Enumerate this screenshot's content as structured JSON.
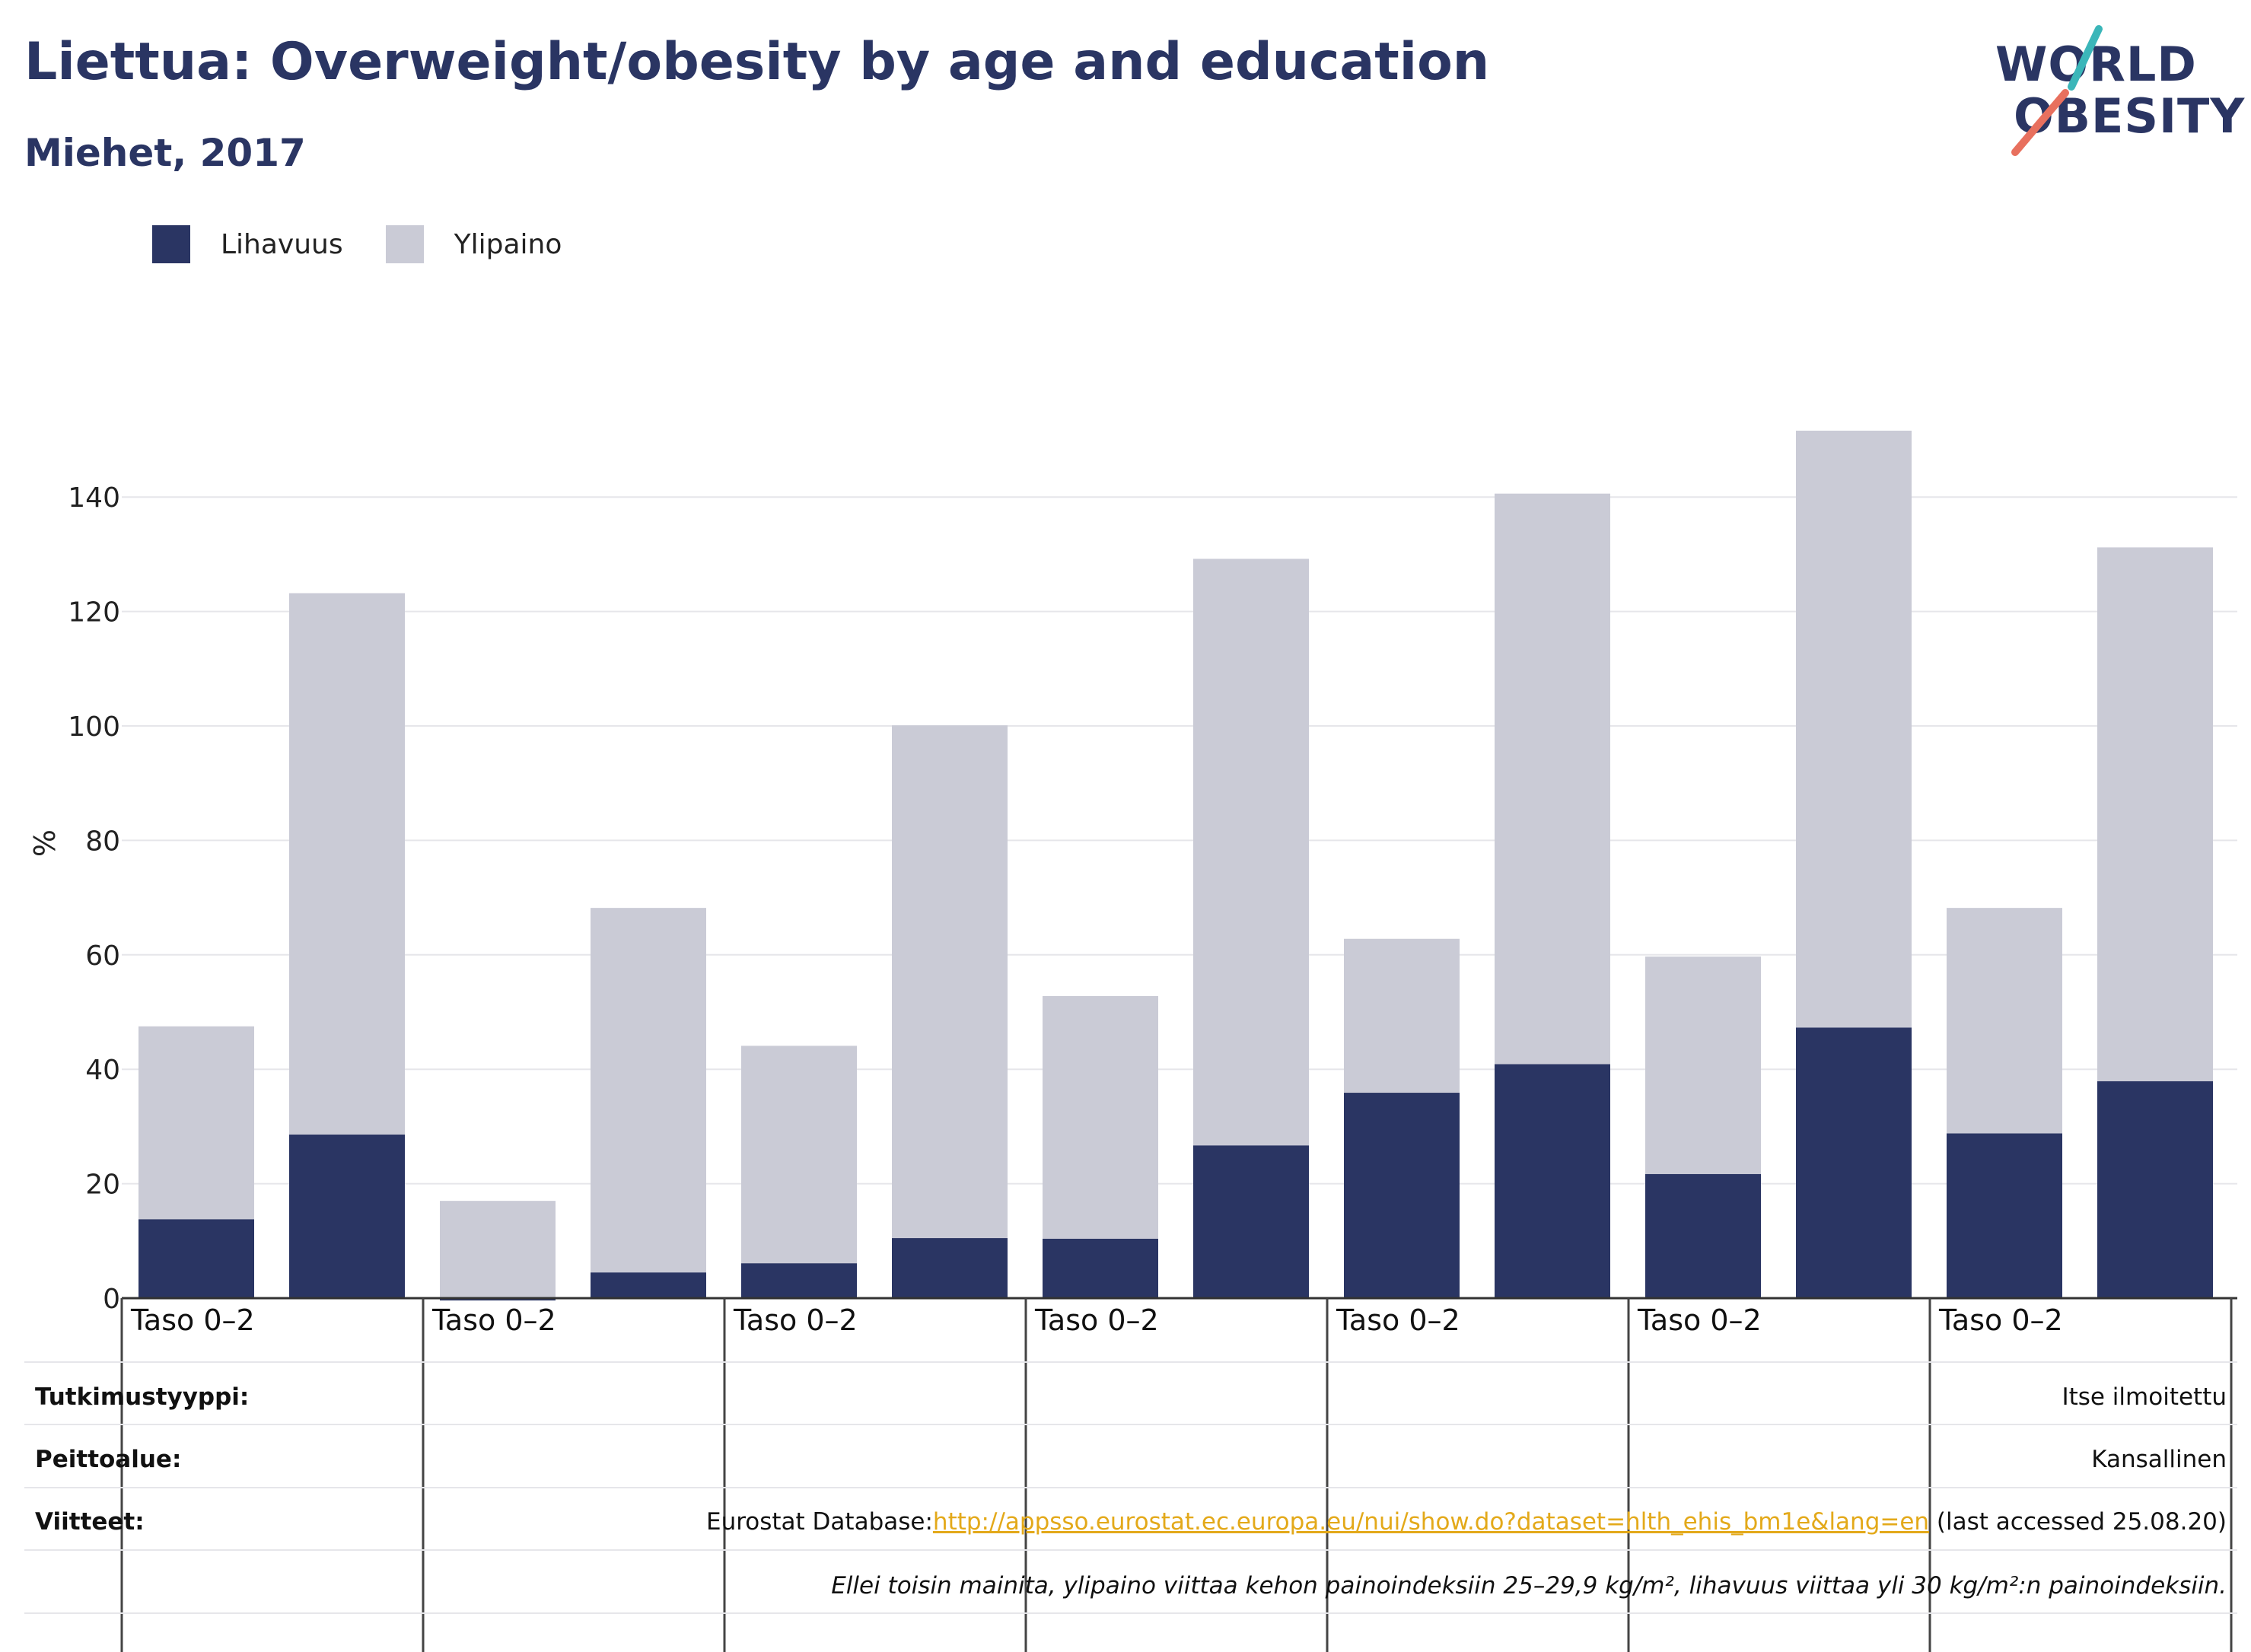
{
  "header": {
    "title": "Liettua: Overweight/obesity by age and education",
    "subtitle": "Miehet, 2017"
  },
  "logo": {
    "line1": "WORLD",
    "line2": "OBESITY"
  },
  "legend": {
    "items": [
      {
        "label": "Lihavuus",
        "color": "#2a3563"
      },
      {
        "label": "Ylipaino",
        "color": "#cacbd6"
      }
    ]
  },
  "chart_data": {
    "type": "bar",
    "stacked": true,
    "ylabel": "%",
    "ylim": [
      0,
      150
    ],
    "yticks": [
      0,
      20,
      40,
      60,
      80,
      100,
      120,
      140
    ],
    "grid": true,
    "legend_position": "top-left",
    "group_labels": [
      "Taso 0–2",
      "Taso 0–2",
      "Taso 0–2",
      "Taso 0–2",
      "Taso 0–2",
      "Taso 0–2",
      "Taso 0–2"
    ],
    "series": [
      {
        "name": "Lihavuus",
        "color": "#2a3563",
        "values": [
          13.8,
          28.6,
          -0.3,
          4.5,
          6.1,
          10.5,
          10.4,
          26.7,
          35.9,
          40.9,
          21.7,
          47.3,
          28.8,
          37.9
        ]
      },
      {
        "name": "Ylipaino",
        "color": "#cacbd6",
        "values": [
          33.7,
          94.6,
          17.0,
          63.7,
          38.0,
          89.6,
          42.4,
          102.5,
          26.9,
          99.7,
          38.0,
          104.3,
          39.4,
          93.3
        ]
      }
    ]
  },
  "footer": {
    "study_type_label": "Tutkimustyyppi:",
    "study_type_value": "Itse ilmoitettu",
    "coverage_label": "Peittoalue:",
    "coverage_value": "Kansallinen",
    "references_label": "Viitteet:",
    "references_prefix": "Eurostat Database:",
    "references_link": "http://appsso.eurostat.ec.europa.eu/nui/show.do?dataset=hlth_ehis_bm1e&lang=en",
    "references_suffix": " (last accessed 25.08.20)",
    "note": "Ellei toisin mainita, ylipaino viittaa kehon painoindeksiin 25–29,9 kg/m², lihavuus viittaa yli 30 kg/m²:n painoindeksiin."
  }
}
